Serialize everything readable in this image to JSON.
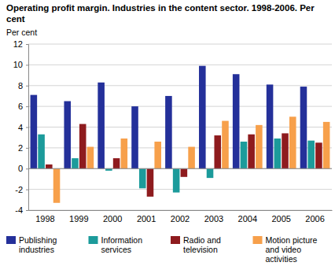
{
  "chart_data": {
    "type": "bar",
    "title": "Operating profit margin. Industries in the content sector. 1998-2006. Per cent",
    "y_label": "Per cent",
    "categories": [
      "1998",
      "1999",
      "2000",
      "2001",
      "2002",
      "2003",
      "2004",
      "2005",
      "2006"
    ],
    "series": [
      {
        "name": "Publishing industries",
        "color": "#24309a",
        "values": [
          7.1,
          6.5,
          8.3,
          6.0,
          7.0,
          9.9,
          9.1,
          8.1,
          7.9
        ]
      },
      {
        "name": "Information services",
        "color": "#1c9b9b",
        "values": [
          3.3,
          1.0,
          -0.2,
          -1.9,
          -2.3,
          -0.9,
          2.6,
          2.9,
          2.7
        ]
      },
      {
        "name": "Radio and television",
        "color": "#8e1b1e",
        "values": [
          0.4,
          4.3,
          1.0,
          -2.7,
          -0.8,
          3.2,
          3.3,
          3.4,
          2.5
        ]
      },
      {
        "name": "Motion picture and video activities",
        "color": "#f7a04b",
        "values": [
          -3.3,
          2.1,
          2.9,
          2.6,
          2.1,
          4.6,
          4.2,
          5.0,
          4.5
        ]
      }
    ],
    "ylim": [
      -4,
      12
    ],
    "yticks": [
      -4,
      -2,
      0,
      2,
      4,
      6,
      8,
      10,
      12
    ],
    "grid": true,
    "legend": "bottom"
  }
}
